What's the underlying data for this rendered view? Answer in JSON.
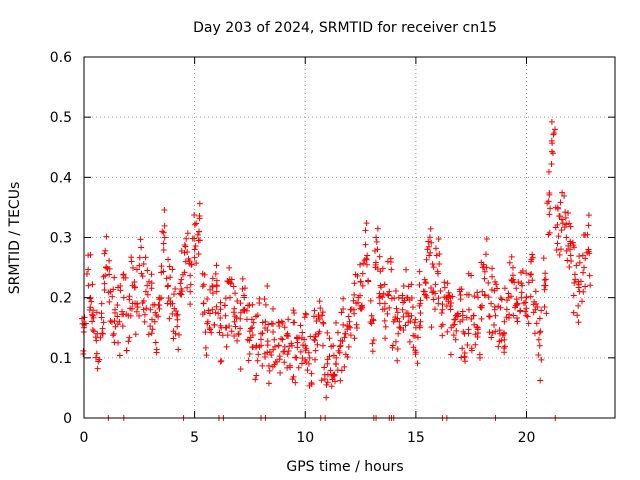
{
  "chart_data": {
    "type": "scatter",
    "title": "Day 203 of 2024, SRMTID for receiver cn15",
    "xlabel": "GPS time / hours",
    "ylabel": "SRMTID / TECUs",
    "xlim": [
      0,
      24
    ],
    "ylim": [
      0,
      0.6
    ],
    "x_ticks": [
      0,
      5,
      10,
      15,
      20
    ],
    "x_tick_labels": [
      "0",
      "5",
      "10",
      "15",
      "20"
    ],
    "y_ticks": [
      0,
      0.1,
      0.2,
      0.3,
      0.4,
      0.5,
      0.6
    ],
    "y_tick_labels": [
      "0",
      "0.1",
      "0.2",
      "0.3",
      "0.4",
      "0.5",
      "0.6"
    ],
    "grid": true,
    "marker": "+",
    "series": [
      {
        "name": "SRMTID",
        "color": "#ff0000",
        "x": [
          0.0,
          0.2,
          0.4,
          0.6,
          0.8,
          1.0,
          1.2,
          1.4,
          1.6,
          1.8,
          2.0,
          2.2,
          2.4,
          2.6,
          2.8,
          3.0,
          3.2,
          3.4,
          3.6,
          3.8,
          4.0,
          4.2,
          4.4,
          4.6,
          4.8,
          5.0,
          5.2,
          5.4,
          5.6,
          5.8,
          6.0,
          6.2,
          6.4,
          6.6,
          6.8,
          7.0,
          7.2,
          7.4,
          7.6,
          7.8,
          8.0,
          8.2,
          8.4,
          8.6,
          8.8,
          9.0,
          9.2,
          9.4,
          9.6,
          9.8,
          10.0,
          10.2,
          10.4,
          10.6,
          10.8,
          11.0,
          11.2,
          11.4,
          11.6,
          11.8,
          12.0,
          12.2,
          12.4,
          12.6,
          12.8,
          13.0,
          13.2,
          13.4,
          13.6,
          13.8,
          14.0,
          14.2,
          14.4,
          14.6,
          14.8,
          15.0,
          15.2,
          15.4,
          15.6,
          15.8,
          16.0,
          16.2,
          16.4,
          16.6,
          16.8,
          17.0,
          17.2,
          17.4,
          17.6,
          17.8,
          18.0,
          18.2,
          18.4,
          18.6,
          18.8,
          19.0,
          19.2,
          19.4,
          19.6,
          19.8,
          20.0,
          20.2,
          20.4,
          20.6,
          20.8,
          21.0,
          21.2,
          21.4,
          21.6,
          21.8,
          22.0,
          22.2,
          22.4,
          22.6,
          22.8
        ],
        "y": [
          0.15,
          0.22,
          0.17,
          0.14,
          0.19,
          0.25,
          0.21,
          0.18,
          0.16,
          0.2,
          0.17,
          0.22,
          0.19,
          0.24,
          0.21,
          0.18,
          0.16,
          0.2,
          0.29,
          0.22,
          0.19,
          0.17,
          0.23,
          0.26,
          0.21,
          0.28,
          0.31,
          0.19,
          0.16,
          0.18,
          0.21,
          0.15,
          0.17,
          0.2,
          0.16,
          0.14,
          0.18,
          0.13,
          0.15,
          0.12,
          0.14,
          0.16,
          0.11,
          0.13,
          0.12,
          0.11,
          0.14,
          0.12,
          0.1,
          0.11,
          0.12,
          0.1,
          0.13,
          0.14,
          0.12,
          0.09,
          0.07,
          0.1,
          0.12,
          0.14,
          0.16,
          0.18,
          0.2,
          0.24,
          0.27,
          0.17,
          0.3,
          0.22,
          0.19,
          0.21,
          0.16,
          0.14,
          0.18,
          0.2,
          0.17,
          0.15,
          0.19,
          0.23,
          0.27,
          0.21,
          0.24,
          0.18,
          0.2,
          0.15,
          0.13,
          0.16,
          0.14,
          0.18,
          0.17,
          0.15,
          0.21,
          0.25,
          0.19,
          0.17,
          0.14,
          0.16,
          0.2,
          0.23,
          0.19,
          0.22,
          0.2,
          0.26,
          0.18,
          0.12,
          0.22,
          0.36,
          0.44,
          0.29,
          0.33,
          0.3,
          0.27,
          0.23,
          0.21,
          0.25,
          0.28
        ]
      }
    ],
    "zero_markers_x": [
      1.1,
      1.8,
      4.5,
      6.1,
      6.3,
      8.0,
      8.2,
      10.7,
      10.9,
      13.1,
      13.2,
      13.8,
      13.9,
      14.0,
      16.2,
      16.4,
      18.6,
      21.3
    ]
  }
}
